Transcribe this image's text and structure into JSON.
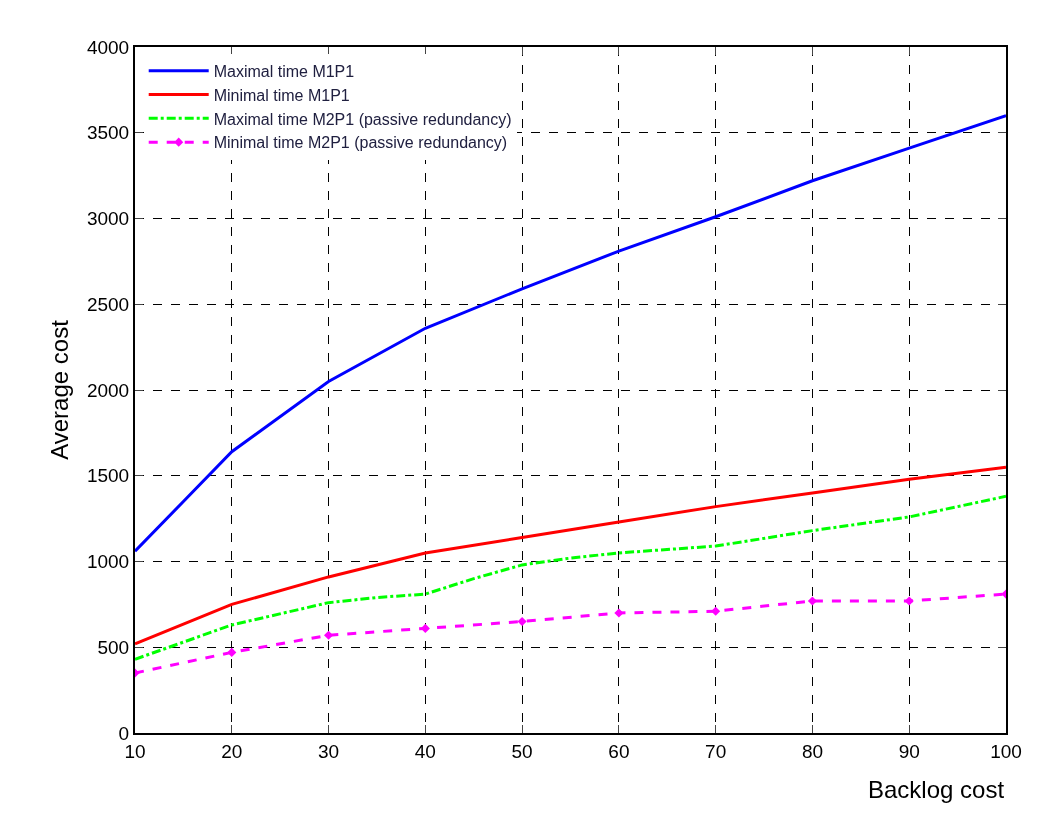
{
  "chart_data": {
    "type": "line",
    "xlabel": "Backlog cost",
    "ylabel": "Average cost",
    "xlim": [
      10,
      100
    ],
    "xticks": [
      10,
      20,
      30,
      40,
      50,
      60,
      70,
      80,
      90,
      100
    ],
    "ylim": [
      0,
      4000
    ],
    "yticks": [
      0,
      500,
      1000,
      1500,
      2000,
      2500,
      3000,
      3500,
      4000
    ],
    "grid": true,
    "legend": "top left",
    "series": [
      {
        "name": "Maximal time M1P1",
        "color": "#0000ff",
        "line_style": "solid",
        "marker": "none",
        "x": [
          10,
          15,
          20,
          30,
          40,
          50,
          60,
          70,
          80,
          90,
          100
        ],
        "values": [
          1060,
          1350,
          1640,
          2050,
          2360,
          2590,
          2810,
          3010,
          3220,
          3410,
          3600
        ]
      },
      {
        "name": "Minimal time M1P1",
        "color": "#ff0000",
        "line_style": "solid",
        "marker": "none",
        "x": [
          10,
          20,
          30,
          40,
          50,
          60,
          70,
          80,
          90,
          100
        ],
        "values": [
          520,
          750,
          910,
          1050,
          1140,
          1230,
          1320,
          1400,
          1480,
          1550
        ]
      },
      {
        "name": "Maximal time M2P1 (passive redundancy)",
        "color": "#00ff00",
        "line_style": "dashdot",
        "marker": "none",
        "x": [
          10,
          20,
          30,
          35,
          40,
          45,
          50,
          55,
          60,
          70,
          80,
          90,
          100
        ],
        "values": [
          430,
          630,
          760,
          790,
          810,
          900,
          980,
          1020,
          1050,
          1090,
          1180,
          1260,
          1380
        ]
      },
      {
        "name": "Minimal time M2P1 (passive redundancy)",
        "color": "#ff00ff",
        "line_style": "dashed",
        "marker": "diamond",
        "x": [
          10,
          20,
          30,
          40,
          50,
          60,
          70,
          80,
          90,
          100
        ],
        "values": [
          350,
          470,
          570,
          610,
          650,
          700,
          710,
          770,
          770,
          810
        ]
      }
    ]
  }
}
